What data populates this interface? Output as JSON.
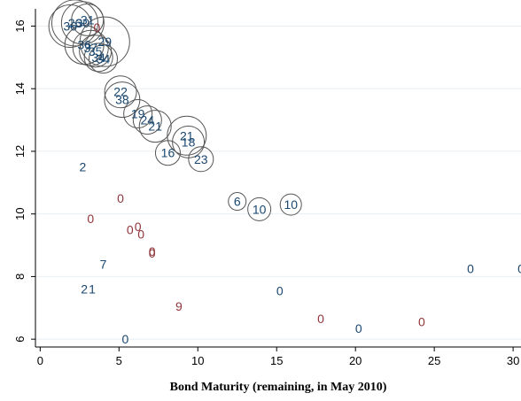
{
  "chart_data": {
    "type": "scatter",
    "title": "",
    "xlabel": "Bond Maturity (remaining, in May 2010)",
    "ylabel": "",
    "xlim": [
      -0.3,
      30.5
    ],
    "ylim": [
      5.75,
      16.55
    ],
    "x_ticks": [
      0,
      5,
      10,
      15,
      20,
      25,
      30
    ],
    "y_ticks": [
      6,
      8,
      10,
      12,
      14,
      16
    ],
    "grid": "horizontal",
    "legend": "none",
    "colors": {
      "blue": "#1a476f",
      "red": "#90353b",
      "circle": "#555555"
    },
    "series": [
      {
        "circled": true,
        "color": "blue",
        "points": [
          {
            "x": 1.9,
            "y": 16.0,
            "label": "36",
            "size": 24
          },
          {
            "x": 2.2,
            "y": 16.1,
            "label": "26",
            "size": 26
          },
          {
            "x": 2.7,
            "y": 16.1,
            "label": "30",
            "size": 24
          },
          {
            "x": 3.0,
            "y": 16.2,
            "label": "31",
            "size": 18
          },
          {
            "x": 2.8,
            "y": 15.4,
            "label": "36",
            "size": 22
          },
          {
            "x": 3.2,
            "y": 15.3,
            "label": "37",
            "size": 20
          },
          {
            "x": 3.5,
            "y": 15.2,
            "label": "35",
            "size": 18
          },
          {
            "x": 4.1,
            "y": 15.5,
            "label": "29",
            "size": 28
          },
          {
            "x": 3.7,
            "y": 15.0,
            "label": "34",
            "size": 16
          },
          {
            "x": 4.0,
            "y": 14.95,
            "label": "34",
            "size": 16
          },
          {
            "x": 5.1,
            "y": 13.9,
            "label": "22",
            "size": 18
          },
          {
            "x": 5.2,
            "y": 13.65,
            "label": "38",
            "size": 20
          },
          {
            "x": 6.2,
            "y": 13.2,
            "label": "19",
            "size": 16
          },
          {
            "x": 6.8,
            "y": 13.0,
            "label": "24",
            "size": 16
          },
          {
            "x": 7.3,
            "y": 12.8,
            "label": "21",
            "size": 18
          },
          {
            "x": 9.3,
            "y": 12.5,
            "label": "21",
            "size": 22
          },
          {
            "x": 9.4,
            "y": 12.3,
            "label": "18",
            "size": 18
          },
          {
            "x": 8.1,
            "y": 11.95,
            "label": "16",
            "size": 14
          },
          {
            "x": 10.2,
            "y": 11.75,
            "label": "23",
            "size": 14
          },
          {
            "x": 12.5,
            "y": 10.4,
            "label": "6",
            "size": 10
          },
          {
            "x": 13.9,
            "y": 10.15,
            "label": "10",
            "size": 13
          },
          {
            "x": 15.9,
            "y": 10.3,
            "label": "10",
            "size": 12
          }
        ]
      },
      {
        "circled": false,
        "color": "blue",
        "points": [
          {
            "x": 2.7,
            "y": 11.5,
            "label": "2"
          },
          {
            "x": 4.0,
            "y": 8.4,
            "label": "7"
          },
          {
            "x": 2.8,
            "y": 7.6,
            "label": "2"
          },
          {
            "x": 3.3,
            "y": 7.6,
            "label": "1"
          },
          {
            "x": 15.2,
            "y": 7.55,
            "label": "0"
          },
          {
            "x": 5.4,
            "y": 6.0,
            "label": "0"
          },
          {
            "x": 20.2,
            "y": 6.35,
            "label": "0"
          },
          {
            "x": 27.3,
            "y": 8.25,
            "label": "0"
          },
          {
            "x": 30.5,
            "y": 8.25,
            "label": "0"
          }
        ]
      },
      {
        "circled": false,
        "color": "red",
        "points": [
          {
            "x": 3.6,
            "y": 15.95,
            "label": "0"
          },
          {
            "x": 3.2,
            "y": 9.85,
            "label": "0"
          },
          {
            "x": 5.1,
            "y": 10.5,
            "label": "0"
          },
          {
            "x": 5.7,
            "y": 9.5,
            "label": "0"
          },
          {
            "x": 6.2,
            "y": 9.6,
            "label": "0"
          },
          {
            "x": 6.4,
            "y": 9.35,
            "label": "0"
          },
          {
            "x": 7.1,
            "y": 8.8,
            "label": "0"
          },
          {
            "x": 7.1,
            "y": 8.75,
            "label": "0"
          },
          {
            "x": 8.8,
            "y": 7.05,
            "label": "9"
          },
          {
            "x": 17.8,
            "y": 6.65,
            "label": "0"
          },
          {
            "x": 24.2,
            "y": 6.55,
            "label": "0"
          }
        ]
      }
    ]
  }
}
